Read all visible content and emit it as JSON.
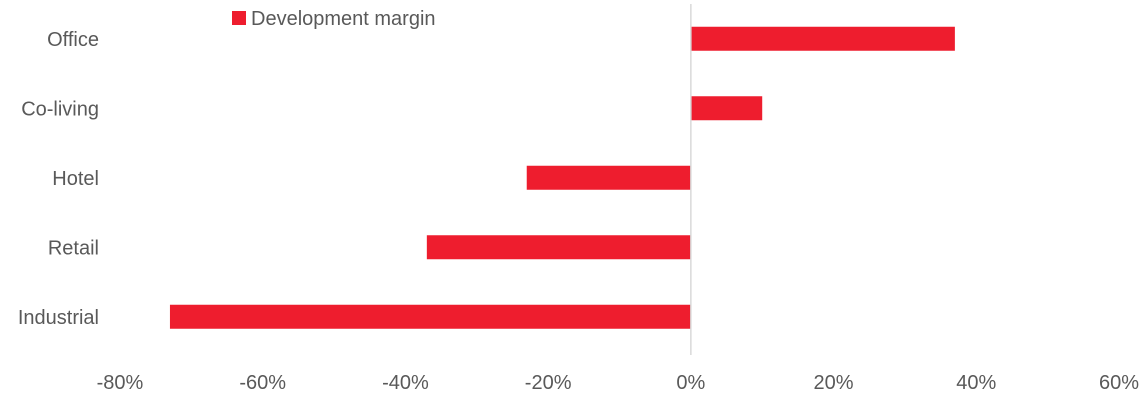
{
  "chart_data": {
    "type": "bar",
    "orientation": "horizontal",
    "categories": [
      "Office",
      "Co-living",
      "Hotel",
      "Retail",
      "Industrial"
    ],
    "series": [
      {
        "name": "Development margin",
        "values": [
          37,
          10,
          -23,
          -37,
          -73
        ],
        "color": "#ee1d2e"
      }
    ],
    "xlim": [
      -80,
      60
    ],
    "xticks": [
      -80,
      -60,
      -40,
      -20,
      0,
      20,
      40,
      60
    ],
    "tick_labels": [
      "-80%",
      "-60%",
      "-40%",
      "-20%",
      "0%",
      "20%",
      "40%",
      "60%"
    ],
    "xlabel": "",
    "ylabel": "",
    "title": "",
    "grid": false,
    "legend_position": "top-left"
  }
}
